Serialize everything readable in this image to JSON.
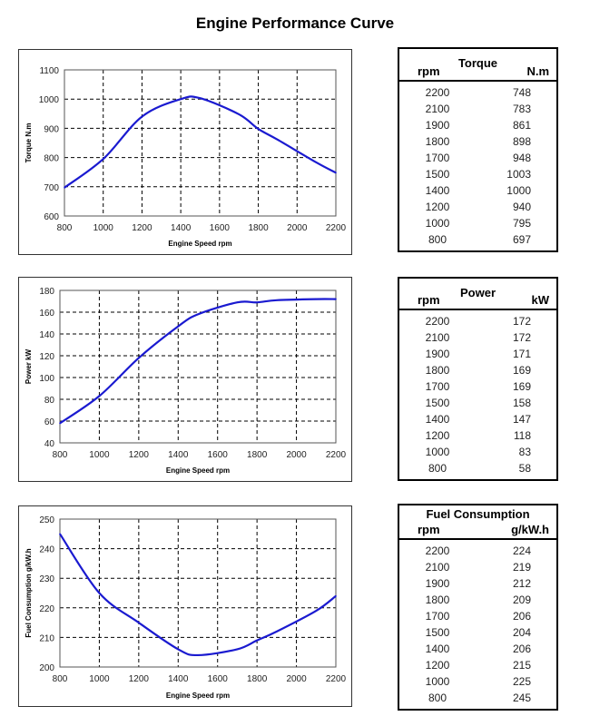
{
  "title": "Engine Performance Curve",
  "colors": {
    "line": "#1a1ad0",
    "grid": "#000000"
  },
  "chart_data": [
    {
      "type": "line",
      "title": "",
      "xlabel": "Engine Speed rpm",
      "ylabel": "Torque N.m",
      "xlim": [
        800,
        2200
      ],
      "ylim": [
        600,
        1100
      ],
      "xticks": [
        800,
        1000,
        1200,
        1400,
        1600,
        1800,
        2000,
        2200
      ],
      "yticks": [
        600,
        700,
        800,
        900,
        1000,
        1100
      ],
      "grid": true,
      "x": [
        800,
        1000,
        1200,
        1400,
        1500,
        1700,
        1800,
        1900,
        2100,
        2200
      ],
      "y": [
        697,
        795,
        940,
        1000,
        1003,
        948,
        898,
        861,
        783,
        748
      ]
    },
    {
      "type": "line",
      "title": "",
      "xlabel": "Engine Speed rpm",
      "ylabel": "Power kW",
      "xlim": [
        800,
        2200
      ],
      "ylim": [
        40,
        180
      ],
      "xticks": [
        800,
        1000,
        1200,
        1400,
        1600,
        1800,
        2000,
        2200
      ],
      "yticks": [
        40,
        60,
        80,
        100,
        120,
        140,
        160,
        180
      ],
      "grid": true,
      "x": [
        800,
        1000,
        1200,
        1400,
        1500,
        1700,
        1800,
        1900,
        2100,
        2200
      ],
      "y": [
        58,
        83,
        118,
        147,
        158,
        169,
        169,
        171,
        172,
        172
      ]
    },
    {
      "type": "line",
      "title": "",
      "xlabel": "Engine Speed rpm",
      "ylabel": "Fuel Consumption g/kW.h",
      "xlim": [
        800,
        2200
      ],
      "ylim": [
        200,
        250
      ],
      "xticks": [
        800,
        1000,
        1200,
        1400,
        1600,
        1800,
        2000,
        2200
      ],
      "yticks": [
        200,
        210,
        220,
        230,
        240,
        250
      ],
      "grid": true,
      "x": [
        800,
        1000,
        1200,
        1400,
        1500,
        1700,
        1800,
        1900,
        2100,
        2200
      ],
      "y": [
        245,
        225,
        215,
        206,
        204,
        206,
        209,
        212,
        219,
        224
      ]
    }
  ],
  "tables": [
    {
      "title": "Torque",
      "col1": "rpm",
      "col2": "N.m",
      "rows": [
        [
          "2200",
          "748"
        ],
        [
          "2100",
          "783"
        ],
        [
          "1900",
          "861"
        ],
        [
          "1800",
          "898"
        ],
        [
          "1700",
          "948"
        ],
        [
          "1500",
          "1003"
        ],
        [
          "1400",
          "1000"
        ],
        [
          "1200",
          "940"
        ],
        [
          "1000",
          "795"
        ],
        [
          "800",
          "697"
        ]
      ]
    },
    {
      "title": "Power",
      "col1": "rpm",
      "col2": "kW",
      "rows": [
        [
          "2200",
          "172"
        ],
        [
          "2100",
          "172"
        ],
        [
          "1900",
          "171"
        ],
        [
          "1800",
          "169"
        ],
        [
          "1700",
          "169"
        ],
        [
          "1500",
          "158"
        ],
        [
          "1400",
          "147"
        ],
        [
          "1200",
          "118"
        ],
        [
          "1000",
          "83"
        ],
        [
          "800",
          "58"
        ]
      ]
    },
    {
      "title": "Fuel Consumption",
      "col1": "rpm",
      "col2": "g/kW.h",
      "rows": [
        [
          "2200",
          "224"
        ],
        [
          "2100",
          "219"
        ],
        [
          "1900",
          "212"
        ],
        [
          "1800",
          "209"
        ],
        [
          "1700",
          "206"
        ],
        [
          "1500",
          "204"
        ],
        [
          "1400",
          "206"
        ],
        [
          "1200",
          "215"
        ],
        [
          "1000",
          "225"
        ],
        [
          "800",
          "245"
        ]
      ]
    }
  ]
}
